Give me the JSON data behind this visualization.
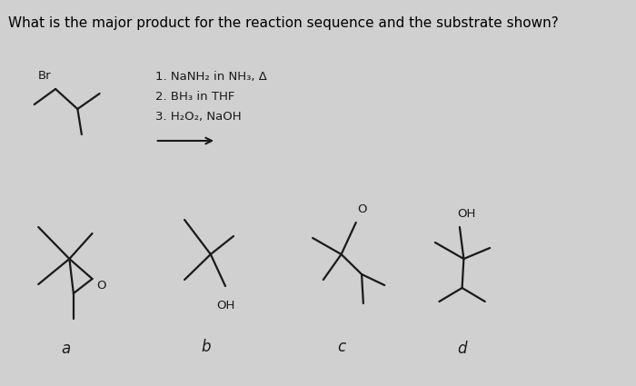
{
  "background_color": "#d0d0d0",
  "title": "What is the major product for the reaction sequence and the substrate shown?",
  "title_fontsize": 11.0,
  "title_color": "#000000",
  "reactions": [
    "1. NaNH₂ in NH₃, Δ",
    "2. BH₃ in THF",
    "3. H₂O₂, NaOH"
  ],
  "labels": [
    "a",
    "b",
    "c",
    "d"
  ],
  "line_color": "#1a1a1a",
  "line_width": 1.6
}
